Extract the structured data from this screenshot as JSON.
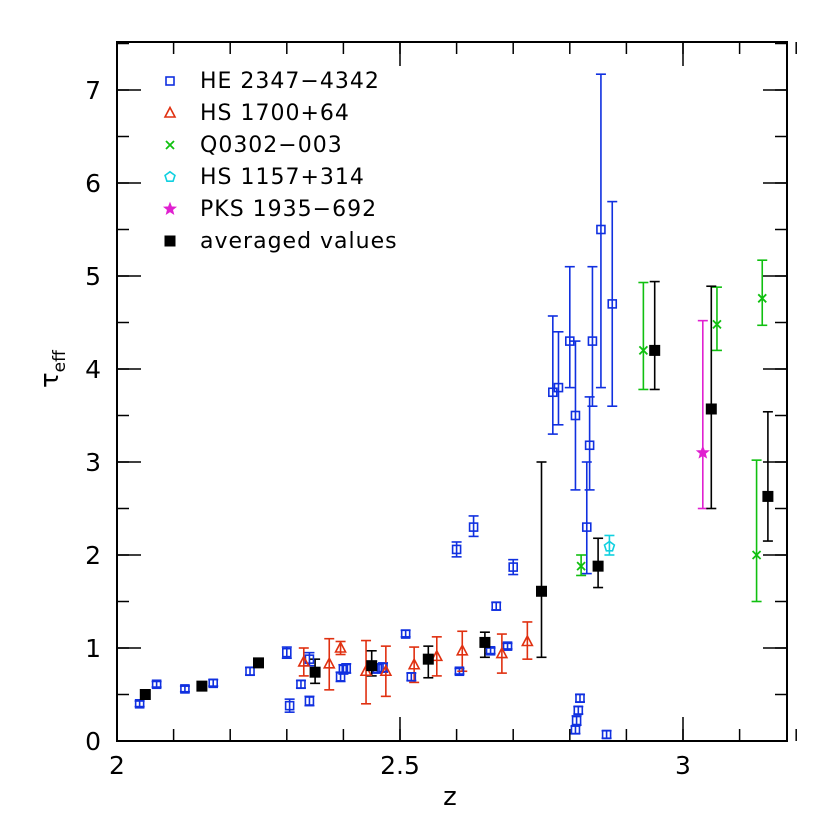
{
  "chart_data": {
    "type": "scatter",
    "title": "",
    "xlabel": "z",
    "ylabel_main": "τ",
    "ylabel_sub": "eff",
    "xlim": [
      2.0,
      3.2
    ],
    "ylim": [
      0,
      7.5
    ],
    "x_ticks": [
      {
        "value": 2,
        "label": "2"
      },
      {
        "value": 2.5,
        "label": "2.5"
      },
      {
        "value": 3,
        "label": "3"
      }
    ],
    "y_ticks": [
      {
        "value": 0,
        "label": "0"
      },
      {
        "value": 1,
        "label": "1"
      },
      {
        "value": 2,
        "label": "2"
      },
      {
        "value": 3,
        "label": "3"
      },
      {
        "value": 4,
        "label": "4"
      },
      {
        "value": 5,
        "label": "5"
      },
      {
        "value": 6,
        "label": "6"
      },
      {
        "value": 7,
        "label": "7"
      }
    ],
    "x_minor_step": 0.1,
    "y_minor_step": 0.5,
    "legend_position": "top-left",
    "series": [
      {
        "name": "HE 2347−4342",
        "color": "#1030e0",
        "marker": "open-square",
        "points": [
          {
            "x": 2.04,
            "y": 0.4,
            "lo": 0.37,
            "hi": 0.43
          },
          {
            "x": 2.07,
            "y": 0.61,
            "lo": 0.58,
            "hi": 0.64
          },
          {
            "x": 2.12,
            "y": 0.56,
            "lo": 0.53,
            "hi": 0.59
          },
          {
            "x": 2.17,
            "y": 0.62,
            "lo": 0.59,
            "hi": 0.66
          },
          {
            "x": 2.235,
            "y": 0.75,
            "lo": 0.71,
            "hi": 0.79
          },
          {
            "x": 2.3,
            "y": 0.95,
            "lo": 0.89,
            "hi": 1.01
          },
          {
            "x": 2.305,
            "y": 0.38,
            "lo": 0.31,
            "hi": 0.45
          },
          {
            "x": 2.325,
            "y": 0.61,
            "lo": 0.57,
            "hi": 0.65
          },
          {
            "x": 2.34,
            "y": 0.43,
            "lo": 0.38,
            "hi": 0.48
          },
          {
            "x": 2.34,
            "y": 0.88,
            "lo": 0.81,
            "hi": 0.95
          },
          {
            "x": 2.395,
            "y": 0.69,
            "lo": 0.64,
            "hi": 0.74
          },
          {
            "x": 2.4,
            "y": 0.77,
            "lo": 0.72,
            "hi": 0.82
          },
          {
            "x": 2.405,
            "y": 0.78,
            "lo": 0.73,
            "hi": 0.83
          },
          {
            "x": 2.46,
            "y": 0.78,
            "lo": 0.73,
            "hi": 0.83
          },
          {
            "x": 2.47,
            "y": 0.79,
            "lo": 0.74,
            "hi": 0.84
          },
          {
            "x": 2.51,
            "y": 1.15,
            "lo": 1.12,
            "hi": 1.19
          },
          {
            "x": 2.52,
            "y": 0.69,
            "lo": 0.65,
            "hi": 0.73
          },
          {
            "x": 2.6,
            "y": 2.06,
            "lo": 1.98,
            "hi": 2.14
          },
          {
            "x": 2.605,
            "y": 0.75,
            "lo": 0.72,
            "hi": 0.78
          },
          {
            "x": 2.63,
            "y": 2.3,
            "lo": 2.2,
            "hi": 2.42
          },
          {
            "x": 2.66,
            "y": 0.97,
            "lo": 0.94,
            "hi": 1.0
          },
          {
            "x": 2.67,
            "y": 1.45,
            "lo": 1.41,
            "hi": 1.49
          },
          {
            "x": 2.69,
            "y": 1.02,
            "lo": 0.99,
            "hi": 1.05
          },
          {
            "x": 2.7,
            "y": 1.87,
            "lo": 1.79,
            "hi": 1.95
          },
          {
            "x": 2.77,
            "y": 3.75,
            "lo": 3.3,
            "hi": 4.57
          },
          {
            "x": 2.78,
            "y": 3.8,
            "lo": 3.4,
            "hi": 4.4
          },
          {
            "x": 2.8,
            "y": 4.3,
            "lo": 3.8,
            "hi": 5.1
          },
          {
            "x": 2.81,
            "y": 3.5,
            "lo": 2.7,
            "hi": 4.3
          },
          {
            "x": 2.81,
            "y": 0.12,
            "lo": 0.08,
            "hi": 0.16
          },
          {
            "x": 2.812,
            "y": 0.22,
            "lo": 0.17,
            "hi": 0.27
          },
          {
            "x": 2.815,
            "y": 0.33,
            "lo": 0.29,
            "hi": 0.37
          },
          {
            "x": 2.818,
            "y": 0.46,
            "lo": 0.42,
            "hi": 0.5
          },
          {
            "x": 2.83,
            "y": 2.3,
            "lo": 1.8,
            "hi": 3.0
          },
          {
            "x": 2.835,
            "y": 3.18,
            "lo": 2.7,
            "hi": 3.7
          },
          {
            "x": 2.84,
            "y": 4.3,
            "lo": 3.6,
            "hi": 5.1
          },
          {
            "x": 2.855,
            "y": 5.5,
            "lo": 3.8,
            "hi": 7.17
          },
          {
            "x": 2.865,
            "y": 0.07,
            "lo": 0.03,
            "hi": 0.11
          },
          {
            "x": 2.875,
            "y": 4.7,
            "lo": 3.6,
            "hi": 5.8
          }
        ]
      },
      {
        "name": "HS 1700+64",
        "color": "#e03010",
        "marker": "open-triangle",
        "points": [
          {
            "x": 2.33,
            "y": 0.85,
            "lo": 0.7,
            "hi": 1.0
          },
          {
            "x": 2.375,
            "y": 0.83,
            "lo": 0.55,
            "hi": 1.1
          },
          {
            "x": 2.395,
            "y": 1.0,
            "lo": 0.93,
            "hi": 1.07
          },
          {
            "x": 2.44,
            "y": 0.75,
            "lo": 0.4,
            "hi": 1.08
          },
          {
            "x": 2.475,
            "y": 0.75,
            "lo": 0.48,
            "hi": 1.02
          },
          {
            "x": 2.525,
            "y": 0.82,
            "lo": 0.63,
            "hi": 1.01
          },
          {
            "x": 2.565,
            "y": 0.91,
            "lo": 0.7,
            "hi": 1.12
          },
          {
            "x": 2.61,
            "y": 0.97,
            "lo": 0.75,
            "hi": 1.18
          },
          {
            "x": 2.68,
            "y": 0.94,
            "lo": 0.73,
            "hi": 1.15
          },
          {
            "x": 2.725,
            "y": 1.07,
            "lo": 0.88,
            "hi": 1.28
          }
        ]
      },
      {
        "name": "Q0302−003",
        "color": "#10c010",
        "marker": "cross",
        "points": [
          {
            "x": 2.82,
            "y": 1.88,
            "lo": 1.78,
            "hi": 2.0
          },
          {
            "x": 2.93,
            "y": 4.2,
            "lo": 3.78,
            "hi": 4.93
          },
          {
            "x": 3.06,
            "y": 4.48,
            "lo": 4.2,
            "hi": 4.88
          },
          {
            "x": 3.13,
            "y": 2.0,
            "lo": 1.5,
            "hi": 3.02
          },
          {
            "x": 3.14,
            "y": 4.76,
            "lo": 4.47,
            "hi": 5.17
          }
        ]
      },
      {
        "name": "HS 1157+314",
        "color": "#10d0e0",
        "marker": "open-pentagon",
        "points": [
          {
            "x": 2.87,
            "y": 2.09,
            "lo": 2.0,
            "hi": 2.21
          }
        ]
      },
      {
        "name": "PKS 1935−692",
        "color": "#e020d0",
        "marker": "star",
        "points": [
          {
            "x": 3.035,
            "y": 3.1,
            "lo": 2.5,
            "hi": 4.52
          }
        ]
      },
      {
        "name": "averaged values",
        "color": "#000000",
        "marker": "filled-square",
        "points": [
          {
            "x": 2.05,
            "y": 0.5,
            "lo": 0.47,
            "hi": 0.53
          },
          {
            "x": 2.15,
            "y": 0.59,
            "lo": 0.56,
            "hi": 0.62
          },
          {
            "x": 2.25,
            "y": 0.84,
            "lo": 0.81,
            "hi": 0.87
          },
          {
            "x": 2.35,
            "y": 0.74,
            "lo": 0.62,
            "hi": 0.88
          },
          {
            "x": 2.45,
            "y": 0.81,
            "lo": 0.7,
            "hi": 0.97
          },
          {
            "x": 2.55,
            "y": 0.88,
            "lo": 0.68,
            "hi": 1.02
          },
          {
            "x": 2.65,
            "y": 1.06,
            "lo": 0.9,
            "hi": 1.17
          },
          {
            "x": 2.75,
            "y": 1.61,
            "lo": 0.9,
            "hi": 3.0
          },
          {
            "x": 2.85,
            "y": 1.88,
            "lo": 1.65,
            "hi": 2.18
          },
          {
            "x": 2.95,
            "y": 4.2,
            "lo": 3.78,
            "hi": 4.94
          },
          {
            "x": 3.05,
            "y": 3.57,
            "lo": 2.5,
            "hi": 4.89
          },
          {
            "x": 3.15,
            "y": 2.63,
            "lo": 2.15,
            "hi": 3.54
          }
        ]
      }
    ]
  }
}
